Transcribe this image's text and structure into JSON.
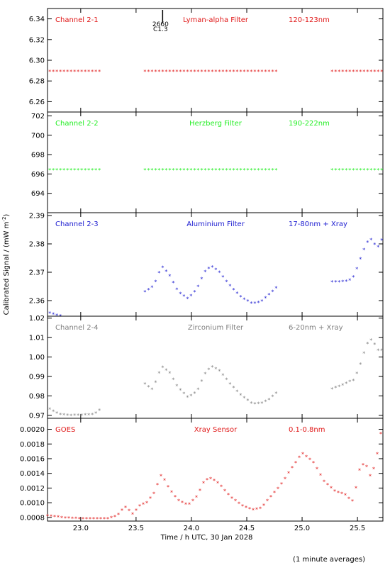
{
  "chart_data": {
    "type": "scatter",
    "x_label": "Time / h UTC, 30 Jan 2028",
    "y_label": "Calibrated Signal / (mW m",
    "y_label_sup": "-2",
    "y_label_end": ")",
    "footnote": "(1 minute averages)",
    "xlim": [
      22.7,
      25.73
    ],
    "x_ticks": [
      23.0,
      23.5,
      24.0,
      24.5,
      25.0,
      25.5
    ],
    "x_tick_labels": [
      "23.0",
      "23.5",
      "24.0",
      "24.5",
      "25.0",
      "25.5"
    ],
    "marker": {
      "label_top": "2660",
      "label_bottom": "C1.3",
      "x": 23.74
    },
    "panels": [
      {
        "channel": "Channel 2-1",
        "filter": "Lyman-alpha Filter",
        "band": "120-123nm",
        "color": "#e01818",
        "ylim": [
          6.25,
          6.35
        ],
        "y_ticks": [
          6.26,
          6.28,
          6.3,
          6.32,
          6.34
        ],
        "y_tick_labels": [
          "6.26",
          "6.28",
          "6.30",
          "6.32",
          "6.34"
        ],
        "segments": [
          {
            "x_start": 22.72,
            "x_end": 23.17,
            "points": [
              [
                22.72,
                6.289
              ],
              [
                23.17,
                6.289
              ]
            ]
          },
          {
            "x_start": 23.58,
            "x_end": 24.77,
            "points": [
              [
                23.58,
                6.289
              ],
              [
                24.77,
                6.289
              ]
            ]
          },
          {
            "x_start": 25.27,
            "x_end": 25.73,
            "points": [
              [
                25.27,
                6.289
              ],
              [
                25.73,
                6.289
              ]
            ]
          }
        ]
      },
      {
        "channel": "Channel 2-2",
        "filter": "Herzberg Filter",
        "band": "190-222nm",
        "color": "#22ee22",
        "ylim": [
          692.0,
          702.4
        ],
        "y_ticks": [
          694,
          696,
          698,
          700,
          702
        ],
        "y_tick_labels": [
          "694",
          "696",
          "698",
          "700",
          "702"
        ],
        "segments": [
          {
            "x_start": 22.72,
            "x_end": 23.17,
            "points": [
              [
                22.72,
                696.4
              ],
              [
                23.17,
                696.4
              ]
            ]
          },
          {
            "x_start": 23.58,
            "x_end": 24.77,
            "points": [
              [
                23.58,
                696.4
              ],
              [
                24.77,
                696.4
              ]
            ]
          },
          {
            "x_start": 25.27,
            "x_end": 25.73,
            "points": [
              [
                25.27,
                696.4
              ],
              [
                25.73,
                696.4
              ]
            ]
          }
        ]
      },
      {
        "channel": "Channel 2-3",
        "filter": "Aluminium Filter",
        "band": "17-80nm + Xray",
        "color": "#1a1ad0",
        "ylim": [
          2.3545,
          2.391
        ],
        "y_ticks": [
          2.36,
          2.37,
          2.38,
          2.39
        ],
        "y_tick_labels": [
          "2.36",
          "2.37",
          "2.38",
          "2.39"
        ],
        "segments": [
          {
            "x_start": 22.72,
            "x_end": 23.17,
            "points": [
              [
                22.72,
                2.3555
              ],
              [
                22.8,
                2.3546
              ],
              [
                22.88,
                2.3542
              ],
              [
                23.0,
                2.3543
              ],
              [
                23.17,
                2.3544
              ]
            ]
          },
          {
            "x_start": 23.58,
            "x_end": 24.77,
            "points": [
              [
                23.58,
                2.363
              ],
              [
                23.66,
                2.365
              ],
              [
                23.73,
                2.372
              ],
              [
                23.8,
                2.369
              ],
              [
                23.88,
                2.363
              ],
              [
                23.97,
                2.3605
              ],
              [
                24.05,
                2.364
              ],
              [
                24.12,
                2.37
              ],
              [
                24.18,
                2.372
              ],
              [
                24.25,
                2.37
              ],
              [
                24.35,
                2.365
              ],
              [
                24.45,
                2.361
              ],
              [
                24.55,
                2.3588
              ],
              [
                24.63,
                2.3595
              ],
              [
                24.7,
                2.362
              ],
              [
                24.77,
                2.3645
              ]
            ]
          },
          {
            "x_start": 25.27,
            "x_end": 25.73,
            "points": [
              [
                25.27,
                2.3665
              ],
              [
                25.35,
                2.3665
              ],
              [
                25.42,
                2.3668
              ],
              [
                25.47,
                2.3685
              ],
              [
                25.52,
                2.374
              ],
              [
                25.57,
                2.379
              ],
              [
                25.61,
                2.382
              ],
              [
                25.66,
                2.3795
              ],
              [
                25.7,
                2.3785
              ],
              [
                25.73,
                2.383
              ]
            ]
          }
        ]
      },
      {
        "channel": "Channel 2-4",
        "filter": "Zirconium Filter",
        "band": "6-20nm + Xray",
        "color": "#808080",
        "ylim": [
          0.9685,
          1.021
        ],
        "y_ticks": [
          0.97,
          0.98,
          0.99,
          1.0,
          1.01,
          1.02
        ],
        "y_tick_labels": [
          "0.97",
          "0.98",
          "0.99",
          "1.00",
          "1.01",
          "1.02"
        ],
        "segments": [
          {
            "x_start": 22.72,
            "x_end": 23.17,
            "points": [
              [
                22.72,
                0.973
              ],
              [
                22.8,
                0.9705
              ],
              [
                22.9,
                0.9698
              ],
              [
                23.0,
                0.97
              ],
              [
                23.12,
                0.9703
              ],
              [
                23.17,
                0.9725
              ]
            ]
          },
          {
            "x_start": 23.58,
            "x_end": 24.77,
            "points": [
              [
                23.58,
                0.986
              ],
              [
                23.65,
                0.983
              ],
              [
                23.73,
                0.995
              ],
              [
                23.8,
                0.992
              ],
              [
                23.88,
                0.984
              ],
              [
                23.97,
                0.979
              ],
              [
                24.05,
                0.982
              ],
              [
                24.12,
                0.991
              ],
              [
                24.18,
                0.995
              ],
              [
                24.25,
                0.993
              ],
              [
                24.35,
                0.986
              ],
              [
                24.45,
                0.98
              ],
              [
                24.55,
                0.9758
              ],
              [
                24.63,
                0.976
              ],
              [
                24.7,
                0.978
              ],
              [
                24.77,
                0.9815
              ]
            ]
          },
          {
            "x_start": 25.27,
            "x_end": 25.73,
            "points": [
              [
                25.27,
                0.9835
              ],
              [
                25.35,
                0.985
              ],
              [
                25.42,
                0.987
              ],
              [
                25.47,
                0.988
              ],
              [
                25.52,
                0.995
              ],
              [
                25.57,
                1.004
              ],
              [
                25.61,
                1.0095
              ],
              [
                25.66,
                1.006
              ],
              [
                25.7,
                1.002
              ],
              [
                25.73,
                1.004
              ]
            ]
          }
        ]
      },
      {
        "channel": "GOES",
        "filter": "Xray Sensor",
        "band": "0.1-0.8nm",
        "color": "#e01818",
        "ylim": [
          0.00075,
          0.00215
        ],
        "y_ticks": [
          0.0008,
          0.001,
          0.0012,
          0.0014,
          0.0016,
          0.0018,
          0.002
        ],
        "y_tick_labels": [
          "0.0008",
          "0.0010",
          "0.0012",
          "0.0014",
          "0.0016",
          "0.0018",
          "0.0020"
        ],
        "segments": [
          {
            "x_start": 22.7,
            "x_end": 25.73,
            "points": [
              [
                22.7,
                0.00082
              ],
              [
                22.85,
                0.00079
              ],
              [
                23.0,
                0.00078
              ],
              [
                23.25,
                0.00078
              ],
              [
                23.33,
                0.00082
              ],
              [
                23.4,
                0.00094
              ],
              [
                23.47,
                0.00084
              ],
              [
                23.53,
                0.00095
              ],
              [
                23.6,
                0.001
              ],
              [
                23.66,
                0.00112
              ],
              [
                23.73,
                0.00138
              ],
              [
                23.8,
                0.00118
              ],
              [
                23.88,
                0.00103
              ],
              [
                23.97,
                0.00096
              ],
              [
                24.05,
                0.00108
              ],
              [
                24.12,
                0.0013
              ],
              [
                24.18,
                0.00133
              ],
              [
                24.25,
                0.00125
              ],
              [
                24.35,
                0.00108
              ],
              [
                24.45,
                0.00096
              ],
              [
                24.55,
                0.0009
              ],
              [
                24.63,
                0.00092
              ],
              [
                24.7,
                0.00105
              ],
              [
                24.8,
                0.00122
              ],
              [
                24.9,
                0.00145
              ],
              [
                25.0,
                0.00167
              ],
              [
                25.1,
                0.00155
              ],
              [
                25.2,
                0.00128
              ],
              [
                25.3,
                0.00115
              ],
              [
                25.4,
                0.0011
              ],
              [
                25.45,
                0.001
              ],
              [
                25.48,
                0.00115
              ],
              [
                25.52,
                0.00145
              ],
              [
                25.57,
                0.00155
              ],
              [
                25.61,
                0.00135
              ],
              [
                25.66,
                0.0015
              ],
              [
                25.73,
                0.0021
              ]
            ]
          }
        ]
      }
    ]
  }
}
